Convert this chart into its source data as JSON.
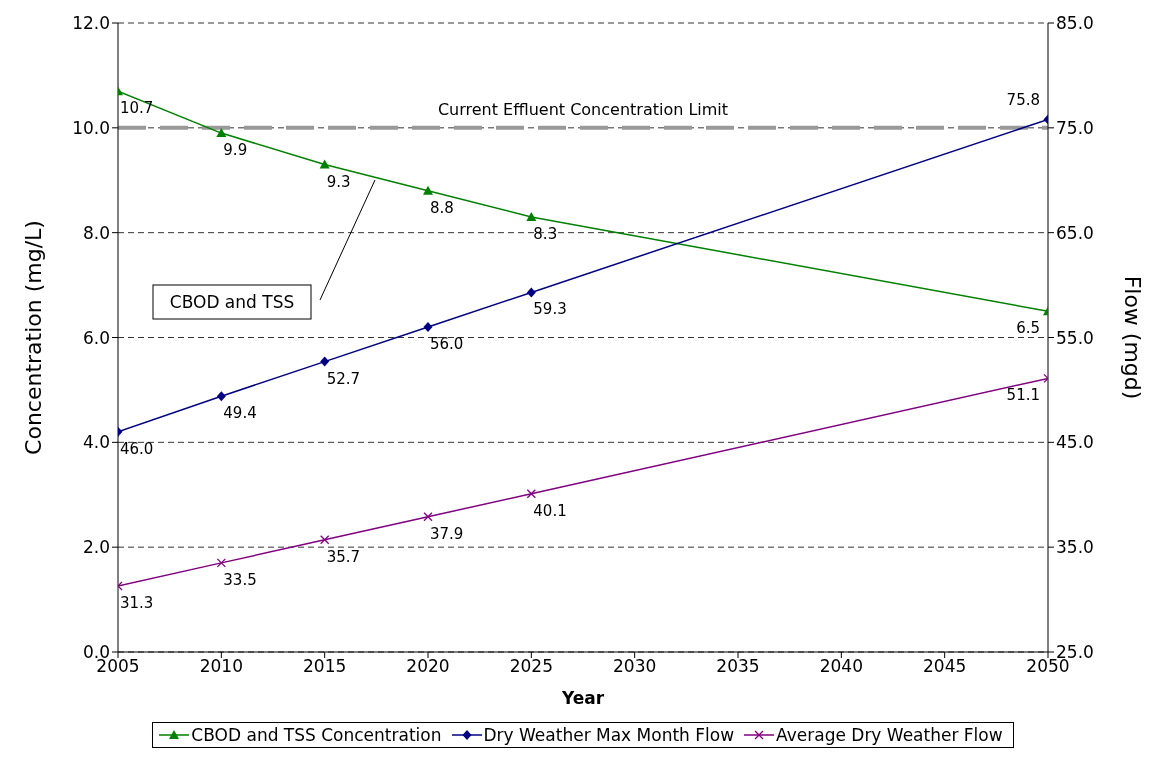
{
  "chart_data": {
    "type": "line",
    "xlabel": "Year",
    "ylabel": "Concentration (mg/L)",
    "y2label": "Flow (mgd)",
    "x": [
      2005,
      2010,
      2015,
      2020,
      2025,
      2050
    ],
    "xlim": [
      2005,
      2050
    ],
    "xticks": [
      2005,
      2010,
      2015,
      2020,
      2025,
      2030,
      2035,
      2040,
      2045,
      2050
    ],
    "ylim": [
      0,
      12
    ],
    "yticks": [
      {
        "value": 0,
        "label": "0.0"
      },
      {
        "value": 2,
        "label": "2.0"
      },
      {
        "value": 4,
        "label": "4.0"
      },
      {
        "value": 6,
        "label": "6.0"
      },
      {
        "value": 8,
        "label": "8.0"
      },
      {
        "value": 10,
        "label": "10.0"
      },
      {
        "value": 12,
        "label": "12.0"
      }
    ],
    "y2lim": [
      25,
      85
    ],
    "y2ticks": [
      {
        "value": 25,
        "label": "25.0"
      },
      {
        "value": 35,
        "label": "35.0"
      },
      {
        "value": 45,
        "label": "45.0"
      },
      {
        "value": 55,
        "label": "55.0"
      },
      {
        "value": 65,
        "label": "65.0"
      },
      {
        "value": 75,
        "label": "75.0"
      },
      {
        "value": 85,
        "label": "85.0"
      }
    ],
    "series": [
      {
        "name": "CBOD and TSS Concentration",
        "color": "#008000",
        "marker": "triangle",
        "values": [
          10.7,
          9.9,
          9.3,
          8.8,
          8.3,
          6.5
        ],
        "value_labels": [
          "10.7",
          "9.9",
          "9.3",
          "8.8",
          "8.3",
          "6.5"
        ]
      },
      {
        "name": "Dry Weather Max Month Flow",
        "color": "#000080",
        "marker": "diamond",
        "axis": "y2",
        "values": [
          46.0,
          49.4,
          52.7,
          56.0,
          59.3,
          75.8
        ],
        "value_labels": [
          "46.0",
          "49.4",
          "52.7",
          "56.0",
          "59.3",
          "75.8"
        ]
      },
      {
        "name": "Average Dry Weather Flow",
        "color": "#800080",
        "marker": "cross",
        "axis": "y2",
        "values": [
          31.3,
          33.5,
          35.7,
          37.9,
          40.1,
          51.1
        ],
        "value_labels": [
          "31.3",
          "33.5",
          "35.7",
          "37.9",
          "40.1",
          "51.1"
        ]
      }
    ],
    "ref_lines": [
      {
        "axis": "y",
        "value": 10,
        "label": "Current Effluent Concentration Limit",
        "color": "#999999",
        "line_style": "dashed"
      }
    ],
    "annotations": [
      "CBOD and TSS"
    ],
    "grid": "y",
    "legend": "bottom",
    "line_style": "solid"
  }
}
